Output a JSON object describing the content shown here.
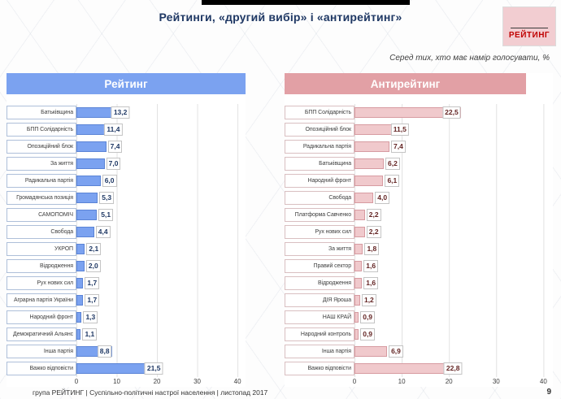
{
  "slide": {
    "title": "Рейтинги, «другий вибір» і «антирейтинг»",
    "subtitle": "Серед тих, хто має намір голосувати, %",
    "logo_text": "РЕЙТИНГ"
  },
  "footer": {
    "text": "група РЕЙТИНГ  |  Суспільно-політичні настрої населення  |  листопад 2017",
    "page": "9"
  },
  "colors": {
    "title_navy": "#1F3864",
    "logo_pink": "#F2CDD1",
    "logo_red": "#C00000"
  },
  "chart_data": [
    {
      "type": "bar",
      "orientation": "horizontal",
      "title": "Рейтинг",
      "categories": [
        "Батьківщина",
        "БПП Солідарність",
        "Опозиційний блок",
        "За життя",
        "Радикальна партія",
        "Громадянська позиція",
        "САМОПОМІЧ",
        "Свобода",
        "УКРОП",
        "Відродження",
        "Рух нових сил",
        "Аграрна партія України",
        "Народний фронт",
        "Демократичний Альянс",
        "Інша партія",
        "Важко відповісти"
      ],
      "values": [
        13.2,
        11.4,
        7.4,
        7.0,
        6.0,
        5.3,
        5.1,
        4.4,
        2.1,
        2.0,
        1.7,
        1.7,
        1.3,
        1.1,
        8.8,
        21.5
      ],
      "value_labels": [
        "13,2",
        "11,4",
        "7,4",
        "7,0",
        "6,0",
        "5,3",
        "5,1",
        "4,4",
        "2,1",
        "2,0",
        "1,7",
        "1,7",
        "1,3",
        "1,1",
        "8,8",
        "21,5"
      ],
      "xlabel": "",
      "ylabel": "",
      "xlim": [
        0,
        40
      ],
      "x_ticks": [
        0,
        10,
        20,
        30,
        40
      ],
      "grid": true,
      "legend": false,
      "colors": {
        "header_bg": "#7BA2F0",
        "bar_fill": "#7BA2F0",
        "bar_border": "#5B84D6",
        "value_color": "#1F3864",
        "cell_border": "#AEBFD9"
      }
    },
    {
      "type": "bar",
      "orientation": "horizontal",
      "title": "Антирейтинг",
      "categories": [
        "БПП Солідарність",
        "Опозиційний блок",
        "Радикальна партія",
        "Батьківщина",
        "Народний фронт",
        "Свобода",
        "Платформа Савченко",
        "Рух нових сил",
        "За життя",
        "Правий сектор",
        "Відродження",
        "ДІЯ Яроша",
        "НАШ КРАЙ",
        "Народний контроль",
        "Інша партія",
        "Важко відповісти"
      ],
      "values": [
        22.5,
        11.5,
        7.4,
        6.2,
        6.1,
        4.0,
        2.2,
        2.2,
        1.8,
        1.6,
        1.6,
        1.2,
        0.9,
        0.9,
        6.9,
        22.8
      ],
      "value_labels": [
        "22,5",
        "11,5",
        "7,4",
        "6,2",
        "6,1",
        "4,0",
        "2,2",
        "2,2",
        "1,8",
        "1,6",
        "1,6",
        "1,2",
        "0,9",
        "0,9",
        "6,9",
        "22,8"
      ],
      "xlabel": "",
      "ylabel": "",
      "xlim": [
        0,
        40
      ],
      "x_ticks": [
        0,
        10,
        20,
        30,
        40
      ],
      "grid": true,
      "legend": false,
      "colors": {
        "header_bg": "#E2A0A5",
        "bar_fill": "#F0C9CC",
        "bar_border": "#D79BA1",
        "value_color": "#632423",
        "cell_border": "#D9BFC1"
      }
    }
  ]
}
